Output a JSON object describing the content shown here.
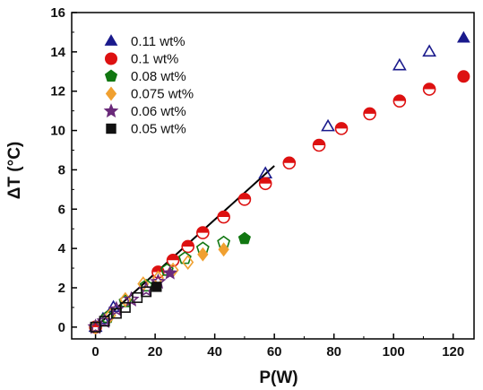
{
  "chart_data": {
    "type": "scatter",
    "title": "",
    "xlabel": "P(W)",
    "ylabel": "ΔT (°C)",
    "xlim": [
      -8,
      127
    ],
    "ylim": [
      -0.6,
      16
    ],
    "xticks": [
      0,
      20,
      40,
      60,
      80,
      100,
      120
    ],
    "yticks": [
      0,
      2,
      4,
      6,
      8,
      10,
      12,
      14,
      16
    ],
    "grid": false,
    "legend_position": "top-left",
    "series": [
      {
        "name": "0.11 wt%",
        "marker": "triangle",
        "color": "#1a1a8c",
        "filled": [
          [
            123.5,
            14.7
          ]
        ],
        "hollow": [
          [
            0,
            0
          ],
          [
            2.5,
            0.4
          ],
          [
            6,
            1.0
          ],
          [
            57,
            7.8
          ],
          [
            78,
            10.2
          ],
          [
            102,
            13.3
          ],
          [
            112,
            14.0
          ]
        ]
      },
      {
        "name": "0.1 wt%",
        "marker": "circle",
        "color": "#dd1111",
        "filled": [
          [
            123.5,
            12.75
          ]
        ],
        "hollow": [
          [
            0,
            0
          ],
          [
            21,
            2.8
          ],
          [
            26,
            3.4
          ],
          [
            31,
            4.1
          ],
          [
            36,
            4.8
          ],
          [
            43,
            5.6
          ],
          [
            50,
            6.5
          ],
          [
            57,
            7.3
          ],
          [
            65,
            8.35
          ],
          [
            75,
            9.25
          ],
          [
            82.5,
            10.1
          ],
          [
            92,
            10.85
          ],
          [
            102,
            11.5
          ],
          [
            112,
            12.1
          ]
        ]
      },
      {
        "name": "0.08 wt%",
        "marker": "pentagon",
        "color": "#117711",
        "filled": [
          [
            50,
            4.5
          ]
        ],
        "hollow": [
          [
            0,
            0
          ],
          [
            4,
            0.5
          ],
          [
            10,
            1.3
          ],
          [
            17,
            2.1
          ],
          [
            24,
            2.9
          ],
          [
            30,
            3.5
          ],
          [
            36,
            4.0
          ],
          [
            43,
            4.3
          ]
        ]
      },
      {
        "name": "0.075 wt%",
        "marker": "diamond",
        "color": "#f0a030",
        "filled": [
          [
            36,
            3.7
          ],
          [
            43,
            3.95
          ]
        ],
        "hollow": [
          [
            0,
            0
          ],
          [
            5,
            0.6
          ],
          [
            10,
            1.4
          ],
          [
            16,
            2.2
          ],
          [
            21,
            2.5
          ],
          [
            26,
            2.9
          ],
          [
            31,
            3.3
          ]
        ]
      },
      {
        "name": "0.06 wt%",
        "marker": "star",
        "color": "#6a2a7a",
        "filled": [
          [
            25,
            2.75
          ]
        ],
        "hollow": [
          [
            0,
            0
          ],
          [
            3,
            0.3
          ],
          [
            7,
            0.9
          ],
          [
            12,
            1.4
          ],
          [
            17,
            1.9
          ],
          [
            21,
            2.3
          ]
        ]
      },
      {
        "name": "0.05 wt%",
        "marker": "square",
        "color": "#111111",
        "filled": [
          [
            20.5,
            2.05
          ]
        ],
        "hollow": [
          [
            0,
            0
          ],
          [
            3,
            0.3
          ],
          [
            7,
            0.7
          ],
          [
            10,
            1.0
          ],
          [
            14,
            1.5
          ],
          [
            17,
            1.8
          ]
        ]
      }
    ],
    "fit_line": {
      "x": [
        0,
        60
      ],
      "y": [
        0,
        8.2
      ],
      "color": "#000000"
    }
  }
}
